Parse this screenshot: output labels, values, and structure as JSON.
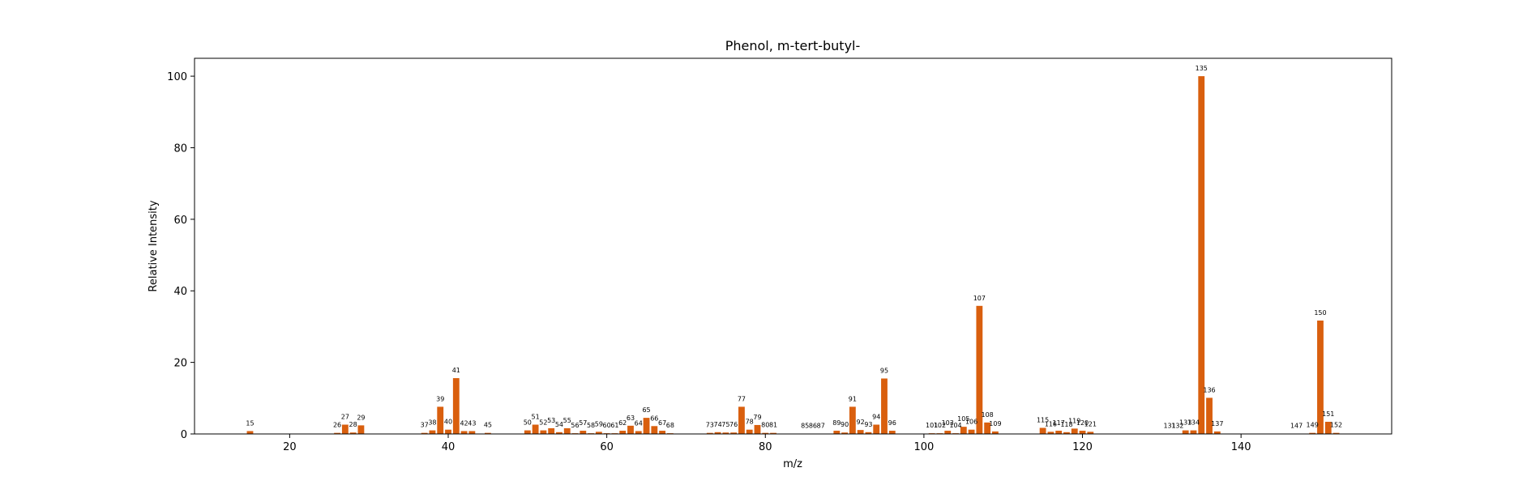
{
  "chart_data": {
    "type": "bar",
    "title": "Phenol, m-tert-butyl-",
    "xlabel": "m/z",
    "ylabel": "Relative Intensity",
    "xlim": [
      8,
      159
    ],
    "ylim": [
      0,
      105
    ],
    "xticks": [
      20,
      40,
      60,
      80,
      100,
      120,
      140
    ],
    "yticks": [
      0,
      20,
      40,
      60,
      80,
      100
    ],
    "bar_color": "#d95f0e",
    "grid": false,
    "legend": "none",
    "x": [
      15,
      26,
      27,
      28,
      29,
      37,
      38,
      39,
      40,
      41,
      42,
      43,
      45,
      50,
      51,
      52,
      53,
      54,
      55,
      56,
      57,
      58,
      59,
      60,
      61,
      62,
      63,
      64,
      65,
      66,
      67,
      68,
      73,
      74,
      75,
      76,
      77,
      78,
      79,
      80,
      81,
      85,
      86,
      87,
      89,
      90,
      91,
      92,
      93,
      94,
      95,
      96,
      101,
      102,
      103,
      104,
      105,
      106,
      107,
      108,
      109,
      115,
      116,
      117,
      118,
      119,
      120,
      121,
      131,
      132,
      133,
      134,
      135,
      136,
      137,
      147,
      149,
      150,
      151,
      152
    ],
    "values": [
      0.8,
      0.3,
      2.6,
      0.4,
      2.4,
      0.3,
      1.0,
      7.6,
      1.2,
      15.6,
      0.8,
      0.8,
      0.3,
      1.0,
      2.6,
      1.0,
      1.6,
      0.5,
      1.6,
      0.2,
      0.9,
      0.2,
      0.6,
      0.2,
      0.2,
      0.9,
      2.3,
      0.8,
      4.5,
      2.2,
      0.9,
      0.2,
      0.3,
      0.5,
      0.4,
      0.4,
      7.6,
      1.2,
      2.5,
      0.3,
      0.3,
      0.1,
      0.1,
      0.1,
      0.9,
      0.4,
      7.6,
      1.1,
      0.5,
      2.6,
      15.5,
      0.9,
      0.2,
      0.2,
      0.9,
      0.2,
      2.0,
      1.2,
      35.8,
      3.2,
      0.7,
      1.7,
      0.6,
      0.9,
      0.5,
      1.5,
      0.9,
      0.6,
      0.1,
      0.1,
      1.0,
      1.0,
      100.0,
      10.1,
      0.7,
      0.1,
      0.3,
      31.7,
      3.4,
      0.3
    ],
    "data_labels": [
      "15",
      "26",
      "27",
      "28",
      "29",
      "37",
      "38",
      "39",
      "40",
      "41",
      "42",
      "43",
      "45",
      "50",
      "51",
      "52",
      "53",
      "54",
      "55",
      "56",
      "57",
      "58",
      "59",
      "60",
      "61",
      "62",
      "63",
      "64",
      "65",
      "66",
      "67",
      "68",
      "73",
      "74",
      "75",
      "76",
      "77",
      "78",
      "79",
      "80",
      "81",
      "85",
      "86",
      "87",
      "89",
      "90",
      "91",
      "92",
      "93",
      "94",
      "95",
      "96",
      "101",
      "102",
      "103",
      "104",
      "105",
      "106",
      "107",
      "108",
      "109",
      "115",
      "116",
      "117",
      "118",
      "119",
      "120",
      "121",
      "131",
      "132",
      "133",
      "134",
      "135",
      "136",
      "137",
      "147",
      "149",
      "150",
      "151",
      "152"
    ]
  }
}
